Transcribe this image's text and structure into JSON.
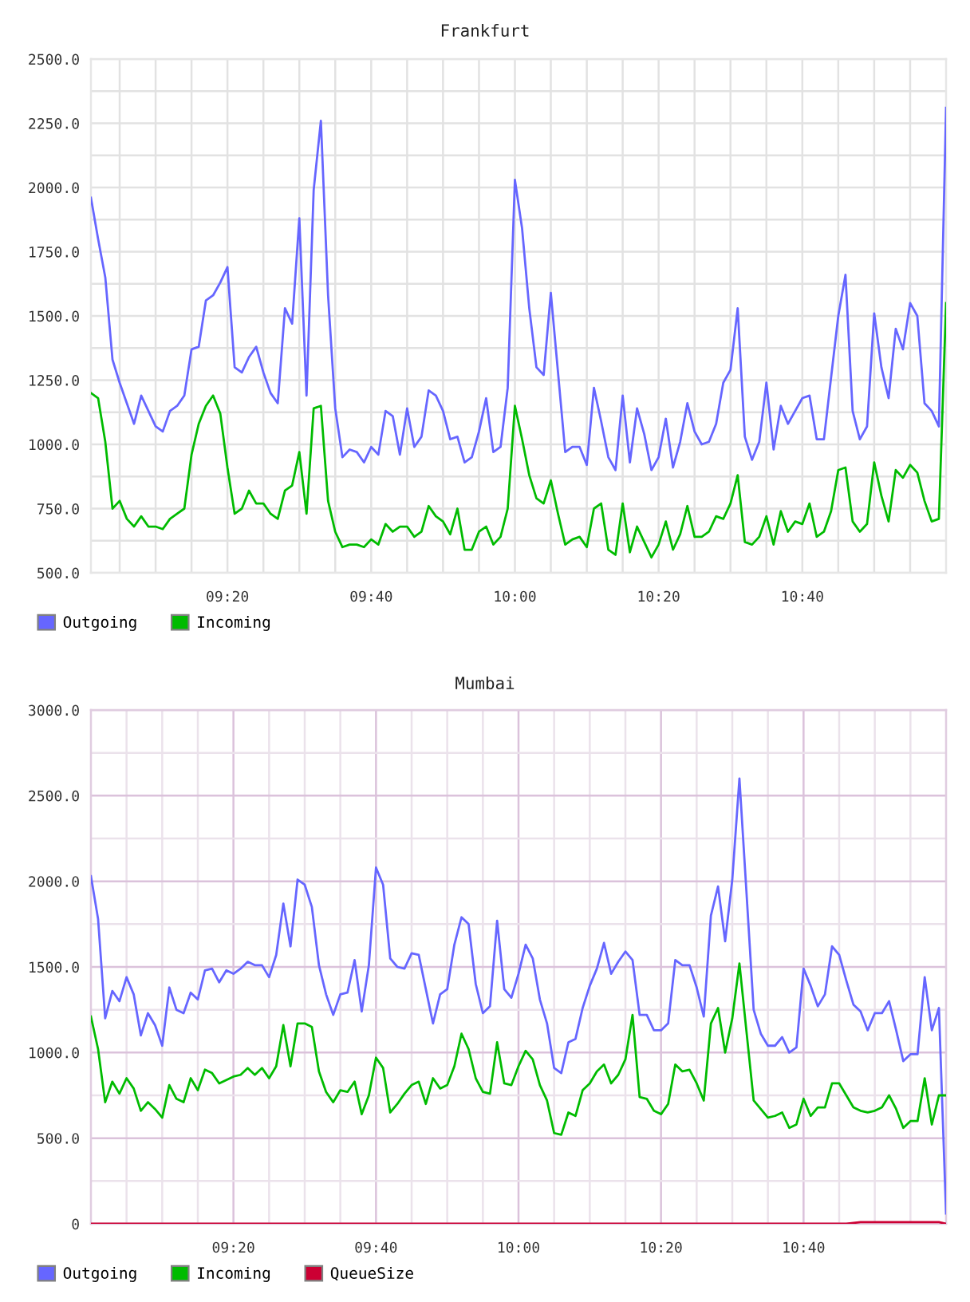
{
  "chart_data": [
    {
      "type": "line",
      "title": "Frankfurt",
      "x": [
        9.0167,
        9.0333,
        9.05,
        9.0667,
        9.0833,
        9.1,
        9.1167,
        9.1333,
        9.15,
        9.1667,
        9.1833,
        9.2,
        9.2167,
        9.2333,
        9.25,
        9.2667,
        9.2833,
        9.3,
        9.3167,
        9.3333,
        9.35,
        9.3667,
        9.3833,
        9.4,
        9.4167,
        9.4333,
        9.45,
        9.4667,
        9.4833,
        9.5,
        9.5167,
        9.5333,
        9.55,
        9.5667,
        9.5833,
        9.6,
        9.6167,
        9.6333,
        9.65,
        9.6667,
        9.6833,
        9.7,
        9.7167,
        9.7333,
        9.75,
        9.7667,
        9.7833,
        9.8,
        9.8167,
        9.8333,
        9.85,
        9.8667,
        9.8833,
        9.9,
        9.9167,
        9.9333,
        9.95,
        9.9667,
        9.9833,
        10.0,
        10.0167,
        10.0333,
        10.05,
        10.0667,
        10.0833,
        10.1,
        10.1167,
        10.1333,
        10.15,
        10.1667,
        10.1833,
        10.2,
        10.2167,
        10.2333,
        10.25,
        10.2667,
        10.2833,
        10.3,
        10.3167,
        10.3333,
        10.35,
        10.3667,
        10.3833,
        10.4,
        10.4167,
        10.4333,
        10.45,
        10.4667,
        10.4833,
        10.5,
        10.5167,
        10.5333,
        10.55,
        10.5667,
        10.5833,
        10.6,
        10.6167,
        10.6333,
        10.65,
        10.6667,
        10.6833,
        10.7,
        10.7167,
        10.7333,
        10.75,
        10.7667,
        10.7833,
        10.8,
        10.8167,
        10.8333,
        10.85,
        10.8667,
        10.8833,
        10.9,
        10.9167,
        10.9333,
        10.95,
        10.9667,
        10.9833,
        11.0
      ],
      "series": [
        {
          "name": "Outgoing",
          "color": "#6666ff",
          "values": [
            1960,
            1800,
            1650,
            1330,
            1240,
            1160,
            1080,
            1190,
            1130,
            1070,
            1050,
            1130,
            1150,
            1190,
            1370,
            1380,
            1560,
            1580,
            1630,
            1690,
            1300,
            1280,
            1340,
            1380,
            1280,
            1200,
            1160,
            1530,
            1470,
            1880,
            1190,
            1990,
            2260,
            1580,
            1140,
            950,
            980,
            970,
            930,
            990,
            960,
            1130,
            1110,
            960,
            1140,
            990,
            1030,
            1210,
            1190,
            1130,
            1020,
            1030,
            930,
            950,
            1050,
            1180,
            970,
            990,
            1220,
            2030,
            1840,
            1530,
            1300,
            1270,
            1590,
            1280,
            970,
            990,
            990,
            920,
            1220,
            1090,
            950,
            900,
            1190,
            930,
            1140,
            1040,
            900,
            950,
            1100,
            910,
            1010,
            1160,
            1050,
            1000,
            1010,
            1080,
            1240,
            1290,
            1530,
            1030,
            940,
            1010,
            1240,
            980,
            1150,
            1080,
            1130,
            1180,
            1190,
            1020,
            1020,
            1260,
            1500,
            1660,
            1130,
            1020,
            1070,
            1510,
            1300,
            1180,
            1450,
            1370,
            1550,
            1500,
            1160,
            1130,
            1070,
            2310
          ]
        },
        {
          "name": "Incoming",
          "color": "#00bb00",
          "values": [
            1200,
            1180,
            1010,
            750,
            780,
            710,
            680,
            720,
            680,
            680,
            670,
            710,
            730,
            750,
            960,
            1080,
            1150,
            1190,
            1120,
            910,
            730,
            750,
            820,
            770,
            770,
            730,
            710,
            820,
            840,
            970,
            730,
            1140,
            1150,
            780,
            660,
            600,
            610,
            610,
            600,
            630,
            610,
            690,
            660,
            680,
            680,
            640,
            660,
            760,
            720,
            700,
            650,
            750,
            590,
            590,
            660,
            680,
            610,
            640,
            750,
            1150,
            1020,
            880,
            790,
            770,
            860,
            730,
            610,
            630,
            640,
            600,
            750,
            770,
            590,
            570,
            770,
            580,
            680,
            620,
            560,
            610,
            700,
            590,
            650,
            760,
            640,
            640,
            660,
            720,
            710,
            770,
            880,
            620,
            610,
            640,
            720,
            610,
            740,
            660,
            700,
            690,
            770,
            640,
            660,
            740,
            900,
            910,
            700,
            660,
            690,
            930,
            800,
            700,
            900,
            870,
            920,
            890,
            780,
            700,
            710,
            1550
          ]
        }
      ],
      "xlim": [
        9.0167,
        11.0
      ],
      "xticks": [
        {
          "value": 9.0833,
          "label": null
        },
        {
          "value": 9.1667,
          "label": null
        },
        {
          "value": 9.25,
          "label": null
        },
        {
          "value": 9.3333,
          "label": "09:20"
        },
        {
          "value": 9.4167,
          "label": null
        },
        {
          "value": 9.5,
          "label": null
        },
        {
          "value": 9.5833,
          "label": null
        },
        {
          "value": 9.6667,
          "label": "09:40"
        },
        {
          "value": 9.75,
          "label": null
        },
        {
          "value": 9.8333,
          "label": null
        },
        {
          "value": 9.9167,
          "label": null
        },
        {
          "value": 10.0,
          "label": "10:00"
        },
        {
          "value": 10.0833,
          "label": null
        },
        {
          "value": 10.1667,
          "label": null
        },
        {
          "value": 10.25,
          "label": null
        },
        {
          "value": 10.3333,
          "label": "10:20"
        },
        {
          "value": 10.4167,
          "label": null
        },
        {
          "value": 10.5,
          "label": null
        },
        {
          "value": 10.5833,
          "label": null
        },
        {
          "value": 10.6667,
          "label": "10:40"
        },
        {
          "value": 10.75,
          "label": null
        },
        {
          "value": 10.8333,
          "label": null
        },
        {
          "value": 10.9167,
          "label": null
        }
      ],
      "ylim": [
        500,
        2500
      ],
      "yticks": [
        {
          "value": 500,
          "label": "500.0"
        },
        {
          "value": 625,
          "label": null
        },
        {
          "value": 750,
          "label": "750.0"
        },
        {
          "value": 875,
          "label": null
        },
        {
          "value": 1000,
          "label": "1000.0"
        },
        {
          "value": 1125,
          "label": null
        },
        {
          "value": 1250,
          "label": "1250.0"
        },
        {
          "value": 1375,
          "label": null
        },
        {
          "value": 1500,
          "label": "1500.0"
        },
        {
          "value": 1625,
          "label": null
        },
        {
          "value": 1750,
          "label": "1750.0"
        },
        {
          "value": 1875,
          "label": null
        },
        {
          "value": 2000,
          "label": "2000.0"
        },
        {
          "value": 2125,
          "label": null
        },
        {
          "value": 2250,
          "label": "2250.0"
        },
        {
          "value": 2375,
          "label": null
        },
        {
          "value": 2500,
          "label": "2500.0"
        }
      ],
      "grid": true,
      "legend": "bottom left"
    },
    {
      "type": "line",
      "title": "Mumbai",
      "x": [
        9.0,
        9.0167,
        9.0333,
        9.05,
        9.0667,
        9.0833,
        9.1,
        9.1167,
        9.1333,
        9.15,
        9.1667,
        9.1833,
        9.2,
        9.2167,
        9.2333,
        9.25,
        9.2667,
        9.2833,
        9.3,
        9.3167,
        9.3333,
        9.35,
        9.3667,
        9.3833,
        9.4,
        9.4167,
        9.4333,
        9.45,
        9.4667,
        9.4833,
        9.5,
        9.5167,
        9.5333,
        9.55,
        9.5667,
        9.5833,
        9.6,
        9.6167,
        9.6333,
        9.65,
        9.6667,
        9.6833,
        9.7,
        9.7167,
        9.7333,
        9.75,
        9.7667,
        9.7833,
        9.8,
        9.8167,
        9.8333,
        9.85,
        9.8667,
        9.8833,
        9.9,
        9.9167,
        9.9333,
        9.95,
        9.9667,
        9.9833,
        10.0,
        10.0167,
        10.0333,
        10.05,
        10.0667,
        10.0833,
        10.1,
        10.1167,
        10.1333,
        10.15,
        10.1667,
        10.1833,
        10.2,
        10.2167,
        10.2333,
        10.25,
        10.2667,
        10.2833,
        10.3,
        10.3167,
        10.3333,
        10.35,
        10.3667,
        10.3833,
        10.4,
        10.4167,
        10.4333,
        10.45,
        10.4667,
        10.4833,
        10.5,
        10.5167,
        10.5333,
        10.55,
        10.5667,
        10.5833,
        10.6,
        10.6167,
        10.6333,
        10.65,
        10.6667,
        10.6833,
        10.7,
        10.7167,
        10.7333,
        10.75,
        10.7667,
        10.7833,
        10.8,
        10.8167,
        10.8333,
        10.85,
        10.8667,
        10.8833,
        10.9,
        10.9167,
        10.9333,
        10.95,
        10.9667,
        10.9833,
        11.0
      ],
      "series": [
        {
          "name": "Outgoing",
          "color": "#6666ff",
          "values": [
            2030,
            1780,
            1200,
            1360,
            1300,
            1440,
            1340,
            1100,
            1230,
            1160,
            1040,
            1380,
            1250,
            1230,
            1350,
            1310,
            1480,
            1490,
            1410,
            1480,
            1460,
            1490,
            1530,
            1510,
            1510,
            1440,
            1570,
            1870,
            1620,
            2010,
            1980,
            1850,
            1510,
            1340,
            1220,
            1340,
            1350,
            1540,
            1240,
            1510,
            2080,
            1980,
            1550,
            1500,
            1490,
            1580,
            1570,
            1370,
            1170,
            1340,
            1370,
            1630,
            1790,
            1750,
            1400,
            1230,
            1270,
            1770,
            1370,
            1320,
            1460,
            1630,
            1550,
            1310,
            1170,
            910,
            880,
            1060,
            1080,
            1260,
            1390,
            1490,
            1640,
            1460,
            1530,
            1590,
            1540,
            1220,
            1220,
            1130,
            1130,
            1170,
            1540,
            1510,
            1510,
            1380,
            1210,
            1800,
            1970,
            1650,
            2010,
            2600,
            1930,
            1250,
            1110,
            1040,
            1040,
            1090,
            1000,
            1030,
            1490,
            1390,
            1270,
            1340,
            1620,
            1570,
            1420,
            1280,
            1240,
            1130,
            1230,
            1230,
            1300,
            1130,
            950,
            990,
            990,
            1440,
            1130,
            1260,
            60
          ]
        },
        {
          "name": "Incoming",
          "color": "#00bb00",
          "values": [
            1210,
            1020,
            710,
            830,
            760,
            850,
            790,
            660,
            710,
            670,
            620,
            810,
            730,
            710,
            850,
            780,
            900,
            880,
            820,
            840,
            860,
            870,
            910,
            870,
            910,
            850,
            920,
            1160,
            920,
            1170,
            1170,
            1150,
            890,
            770,
            710,
            780,
            770,
            830,
            640,
            750,
            970,
            910,
            650,
            700,
            760,
            810,
            830,
            700,
            850,
            790,
            810,
            920,
            1110,
            1020,
            850,
            770,
            760,
            1060,
            820,
            810,
            920,
            1010,
            960,
            810,
            720,
            530,
            520,
            650,
            630,
            780,
            820,
            890,
            930,
            820,
            870,
            960,
            1220,
            740,
            730,
            660,
            640,
            700,
            930,
            890,
            900,
            820,
            720,
            1170,
            1260,
            1000,
            1200,
            1520,
            1120,
            720,
            670,
            620,
            630,
            650,
            560,
            580,
            730,
            630,
            680,
            680,
            820,
            820,
            750,
            680,
            660,
            650,
            660,
            680,
            750,
            670,
            560,
            600,
            600,
            850,
            580,
            750,
            750
          ]
        },
        {
          "name": "QueueSize",
          "color": "#cc0033",
          "x": [
            9.0,
            10.7667,
            10.8,
            10.9833,
            11.0
          ],
          "values": [
            0,
            0,
            10,
            10,
            0
          ]
        }
      ],
      "xlim": [
        9.0,
        11.0
      ],
      "xticks": [
        {
          "value": 9.0833,
          "label": null
        },
        {
          "value": 9.1667,
          "label": null
        },
        {
          "value": 9.25,
          "label": null
        },
        {
          "value": 9.3333,
          "label": "09:20"
        },
        {
          "value": 9.4167,
          "label": null
        },
        {
          "value": 9.5,
          "label": null
        },
        {
          "value": 9.5833,
          "label": null
        },
        {
          "value": 9.6667,
          "label": "09:40"
        },
        {
          "value": 9.75,
          "label": null
        },
        {
          "value": 9.8333,
          "label": null
        },
        {
          "value": 9.9167,
          "label": null
        },
        {
          "value": 10.0,
          "label": "10:00"
        },
        {
          "value": 10.0833,
          "label": null
        },
        {
          "value": 10.1667,
          "label": null
        },
        {
          "value": 10.25,
          "label": null
        },
        {
          "value": 10.3333,
          "label": "10:20"
        },
        {
          "value": 10.4167,
          "label": null
        },
        {
          "value": 10.5,
          "label": null
        },
        {
          "value": 10.5833,
          "label": null
        },
        {
          "value": 10.6667,
          "label": "10:40"
        },
        {
          "value": 10.75,
          "label": null
        },
        {
          "value": 10.8333,
          "label": null
        },
        {
          "value": 10.9167,
          "label": null
        }
      ],
      "ylim": [
        0,
        3000
      ],
      "yticks": [
        {
          "value": 0,
          "label": "0"
        },
        {
          "value": 250,
          "label": null
        },
        {
          "value": 500,
          "label": "500.0"
        },
        {
          "value": 750,
          "label": null
        },
        {
          "value": 1000,
          "label": "1000.0"
        },
        {
          "value": 1250,
          "label": null
        },
        {
          "value": 1500,
          "label": "1500.0"
        },
        {
          "value": 1750,
          "label": null
        },
        {
          "value": 2000,
          "label": "2000.0"
        },
        {
          "value": 2250,
          "label": null
        },
        {
          "value": 2500,
          "label": "2500.0"
        },
        {
          "value": 2750,
          "label": null
        },
        {
          "value": 3000,
          "label": "3000.0"
        }
      ],
      "grid": true,
      "legend": "bottom left"
    }
  ]
}
